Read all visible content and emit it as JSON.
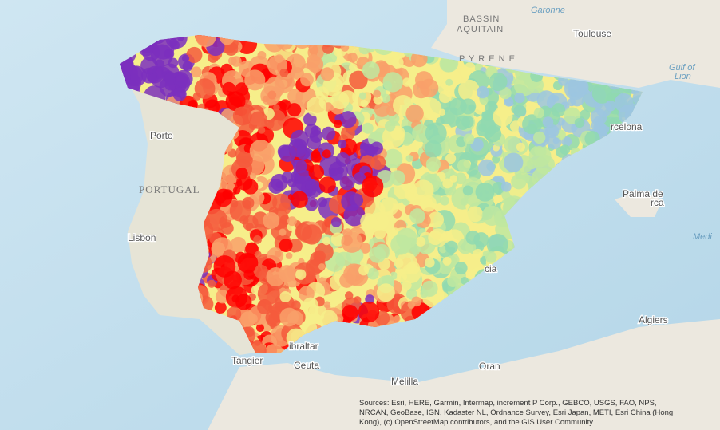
{
  "labels": {
    "bassin_1": "BASSIN",
    "bassin_2": "AQUITAIN",
    "garonne": "Garonne",
    "toulouse": "Toulouse",
    "pyrenees": "P Y R E N E",
    "gulf_1": "Gulf of",
    "gulf_2": "Lion",
    "porto": "Porto",
    "portugal": "PORTUGAL",
    "lisbon": "Lisbon",
    "barcelona": "rcelona",
    "palma_1": "Palma de",
    "palma_2": "rca",
    "medi": "Medi",
    "algiers": "Algiers",
    "tangier": "Tangier",
    "ceuta": "Ceuta",
    "gibraltar": "ibraltar",
    "melilla": "Melilla",
    "oran": "Oran",
    "valencia": "cia"
  },
  "attribution": [
    "Sources: Esri, HERE, Garmin, Intermap, increment P Corp., GEBCO, USGS, FAO, NPS,",
    "NRCAN, GeoBase, IGN, Kadaster NL, Ordnance Survey, Esri Japan, METI, Esri China (Hong",
    "Kong), (c) OpenStreetMap contributors, and the GIS User Community"
  ]
}
